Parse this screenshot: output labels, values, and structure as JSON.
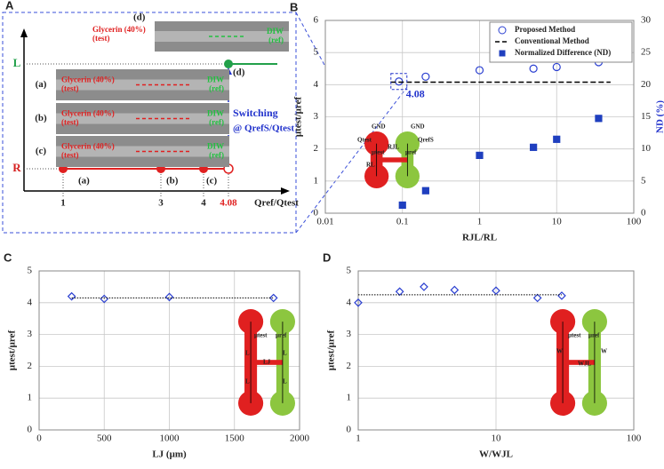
{
  "schematic": {
    "panel": "A",
    "y_labels": [
      "L",
      "R"
    ],
    "x_labels": [
      1,
      3,
      4,
      4.08
    ],
    "x_axis_label": "Qref/Qtest",
    "point_labels": [
      "(a)",
      "(b)",
      "(c)",
      "(d)"
    ],
    "switching": "Switching",
    "switching_condition": "@ QrefS/Qtest",
    "images": [
      {
        "label": "(a)",
        "test": "Glycerin (40%)",
        "test_sub": "(test)",
        "ref": "DIW",
        "ref_sub": "(ref)"
      },
      {
        "label": "(b)",
        "test": "Glycerin (40%)",
        "test_sub": "(test)",
        "ref": "DIW",
        "ref_sub": "(ref)"
      },
      {
        "label": "(c)",
        "test": "Glycerin (40%)",
        "test_sub": "(test)",
        "ref": "DIW",
        "ref_sub": "(ref)"
      },
      {
        "label": "(d)",
        "test": "Glycerin (40%)",
        "test_sub": "(test)",
        "ref": "DIW",
        "ref_sub": "(ref)"
      }
    ]
  },
  "chart_data": [
    {
      "panel": "B",
      "type": "scatter",
      "xlabel": "RJL/RL",
      "ylabel": "μtest/μref",
      "y2label": "ND (%)",
      "xlog": true,
      "xlim": [
        0.01,
        100
      ],
      "xticks": [
        0.01,
        0.1,
        1,
        10,
        100
      ],
      "ylim": [
        0,
        6
      ],
      "yticks": [
        0,
        1,
        2,
        3,
        4,
        5,
        6
      ],
      "y2lim": [
        0,
        30
      ],
      "y2ticks": [
        0,
        5,
        10,
        15,
        20,
        25,
        30
      ],
      "grid": true,
      "legend": "upper right",
      "annotation": "4.08",
      "inset_labels": [
        "GND",
        "GND",
        "Qtest",
        "QrefS",
        "μtest",
        "μref",
        "RJL",
        "RL"
      ],
      "series": [
        {
          "name": "Proposed Method",
          "color": "#2a3fd1",
          "marker": "open-circle",
          "x": [
            0.09,
            0.2,
            1,
            5,
            10,
            35
          ],
          "values": [
            4.1,
            4.25,
            4.45,
            4.5,
            4.55,
            4.7
          ]
        },
        {
          "name": "Conventional Method",
          "color": "#000000",
          "style": "dashed",
          "x": [
            0.07,
            50
          ],
          "values": [
            4.08,
            4.08
          ]
        },
        {
          "name": "Normalized Difference (ND)",
          "color": "#1f3fbf",
          "marker": "square",
          "axis": "y2",
          "x": [
            0.1,
            0.2,
            1,
            5,
            10,
            35
          ],
          "values": [
            1.25,
            3.5,
            9,
            10.25,
            11.5,
            14.75
          ]
        }
      ]
    },
    {
      "panel": "C",
      "type": "scatter",
      "xlabel": "LJ (μm)",
      "ylabel": "μtest/μref",
      "xlog": false,
      "xlim": [
        0,
        2000
      ],
      "xticks": [
        0,
        500,
        1000,
        1500,
        2000
      ],
      "ylim": [
        0,
        5
      ],
      "yticks": [
        0,
        1,
        2,
        3,
        4,
        5
      ],
      "grid": true,
      "inset_labels": [
        "μtest",
        "μref",
        "L",
        "L",
        "L",
        "L",
        "LJ"
      ],
      "series": [
        {
          "color": "#2a3fd1",
          "marker": "open-diamond",
          "x": [
            250,
            500,
            1000,
            1800
          ],
          "values": [
            4.2,
            4.12,
            4.18,
            4.15
          ]
        },
        {
          "color": "#000000",
          "style": "dotted",
          "x": [
            250,
            1800
          ],
          "values": [
            4.15,
            4.15
          ]
        }
      ]
    },
    {
      "panel": "D",
      "type": "scatter",
      "xlabel": "W/WJL",
      "ylabel": "μtest/μref",
      "xlog": true,
      "xlim": [
        1,
        100
      ],
      "xticks": [
        1,
        10,
        100
      ],
      "ylim": [
        0,
        5
      ],
      "yticks": [
        0,
        1,
        2,
        3,
        4,
        5
      ],
      "grid": true,
      "inset_labels": [
        "μtest",
        "μref",
        "W",
        "W",
        "WJL"
      ],
      "series": [
        {
          "color": "#2a3fd1",
          "marker": "open-diamond",
          "x": [
            1,
            2,
            3,
            5,
            10,
            20,
            30
          ],
          "values": [
            4.0,
            4.35,
            4.5,
            4.4,
            4.38,
            4.15,
            4.22
          ]
        },
        {
          "color": "#000000",
          "style": "dotted",
          "x": [
            1,
            30
          ],
          "values": [
            4.25,
            4.25
          ]
        }
      ]
    }
  ]
}
